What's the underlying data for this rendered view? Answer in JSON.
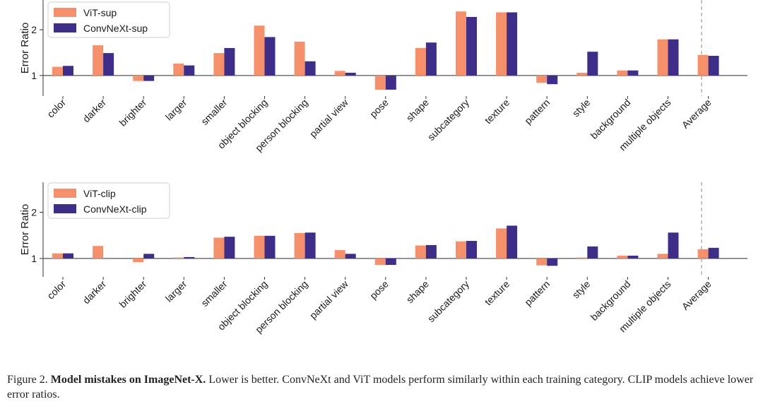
{
  "chart_data": [
    {
      "type": "bar",
      "panel": "top",
      "ylabel": "Error Ratio",
      "ylim": [
        0.55,
        2.65
      ],
      "yticks": [
        1,
        2
      ],
      "baseline": 1,
      "grid": false,
      "legend_position": "top-left",
      "categories": [
        "color",
        "darker",
        "brighter",
        "larger",
        "smaller",
        "object blocking",
        "person blocking",
        "partial view",
        "pose",
        "shape",
        "subcategory",
        "texture",
        "pattern",
        "style",
        "background",
        "multiple objects",
        "Average"
      ],
      "series": [
        {
          "name": "ViT-sup",
          "color": "#f6906b",
          "values": [
            1.19,
            1.66,
            0.88,
            1.26,
            1.49,
            2.09,
            1.74,
            1.1,
            0.69,
            1.6,
            2.4,
            2.38,
            0.84,
            1.06,
            1.11,
            1.79,
            1.45
          ]
        },
        {
          "name": "ConvNeXt-sup",
          "color": "#3f2d8a",
          "values": [
            1.21,
            1.49,
            0.88,
            1.22,
            1.6,
            1.84,
            1.31,
            1.06,
            0.69,
            1.72,
            2.28,
            2.38,
            0.81,
            1.52,
            1.11,
            1.79,
            1.43
          ]
        }
      ]
    },
    {
      "type": "bar",
      "panel": "bottom",
      "ylabel": "Error Ratio",
      "ylim": [
        0.6,
        2.65
      ],
      "yticks": [
        1,
        2
      ],
      "baseline": 1,
      "grid": false,
      "legend_position": "top-left",
      "categories": [
        "color",
        "darker",
        "brighter",
        "larger",
        "smaller",
        "object blocking",
        "person blocking",
        "partial view",
        "pose",
        "shape",
        "subcategory",
        "texture",
        "pattern",
        "style",
        "background",
        "multiple objects",
        "Average"
      ],
      "series": [
        {
          "name": "ViT-clip",
          "color": "#f6906b",
          "values": [
            1.11,
            1.27,
            0.92,
            1.02,
            1.45,
            1.49,
            1.55,
            1.18,
            0.86,
            1.28,
            1.37,
            1.65,
            0.85,
            1.02,
            1.06,
            1.1,
            1.2
          ]
        },
        {
          "name": "ConvNeXt-clip",
          "color": "#3f2d8a",
          "values": [
            1.11,
            1.0,
            1.1,
            1.03,
            1.47,
            1.49,
            1.56,
            1.1,
            0.86,
            1.29,
            1.38,
            1.71,
            0.84,
            1.26,
            1.06,
            1.56,
            1.23
          ]
        }
      ]
    }
  ],
  "caption": {
    "label": "Figure 2.",
    "bold_title": "Model mistakes on ImageNet-X.",
    "text": "Lower is better. ConvNeXt and ViT models perform similarly within each training category. CLIP models achieve lower error ratios."
  }
}
